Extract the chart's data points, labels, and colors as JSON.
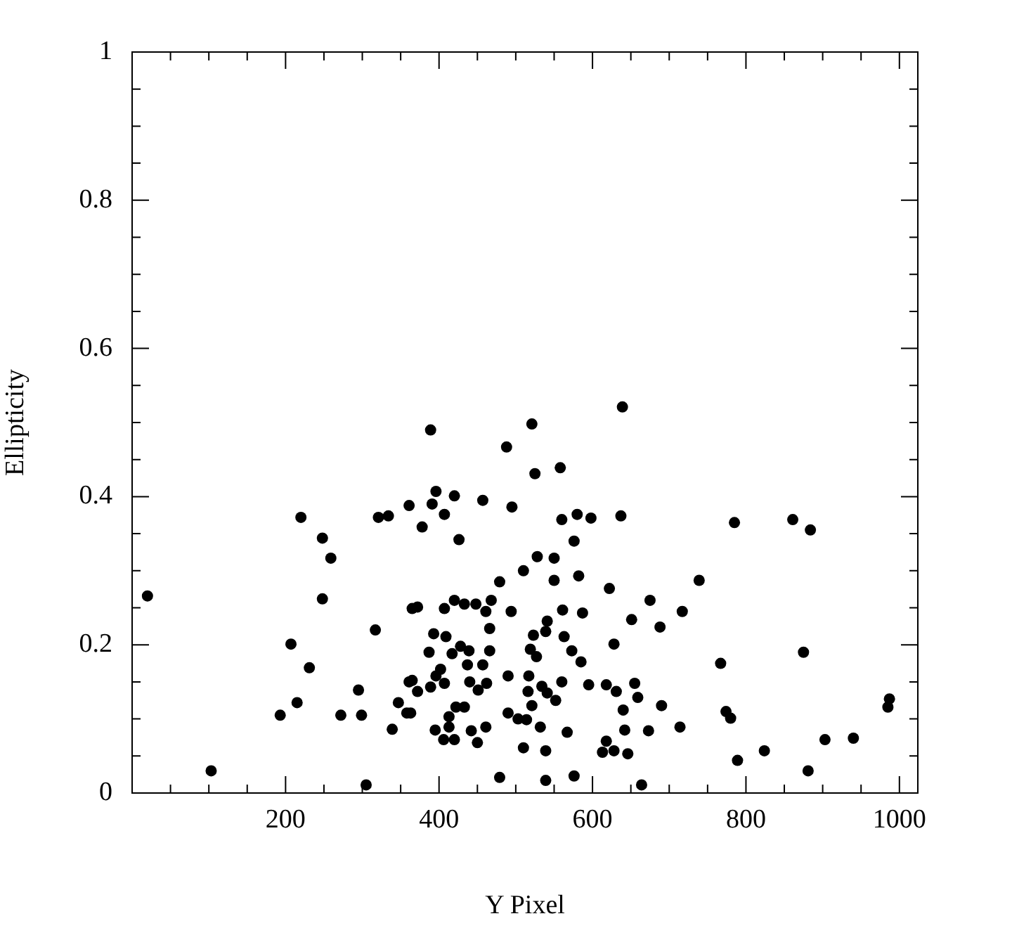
{
  "chart_data": {
    "type": "scatter",
    "xlabel": "Y Pixel",
    "ylabel": "Ellipticity",
    "xlim": [
      0,
      1024
    ],
    "ylim": [
      0,
      1
    ],
    "xticks": [
      {
        "value": 50,
        "label": null
      },
      {
        "value": 100,
        "label": null
      },
      {
        "value": 150,
        "label": null
      },
      200,
      {
        "value": 250,
        "label": null
      },
      {
        "value": 300,
        "label": null
      },
      {
        "value": 350,
        "label": null
      },
      400,
      {
        "value": 450,
        "label": null
      },
      {
        "value": 500,
        "label": null
      },
      {
        "value": 550,
        "label": null
      },
      600,
      {
        "value": 650,
        "label": null
      },
      {
        "value": 700,
        "label": null
      },
      {
        "value": 750,
        "label": null
      },
      800,
      {
        "value": 850,
        "label": null
      },
      {
        "value": 900,
        "label": null
      },
      {
        "value": 950,
        "label": null
      },
      1000
    ],
    "yticks": [
      0,
      {
        "value": 0.05,
        "label": null
      },
      {
        "value": 0.1,
        "label": null
      },
      {
        "value": 0.15,
        "label": null
      },
      0.2,
      {
        "value": 0.25,
        "label": null
      },
      {
        "value": 0.3,
        "label": null
      },
      {
        "value": 0.35,
        "label": null
      },
      0.4,
      {
        "value": 0.45,
        "label": null
      },
      {
        "value": 0.5,
        "label": null
      },
      {
        "value": 0.55,
        "label": null
      },
      0.6,
      {
        "value": 0.65,
        "label": null
      },
      {
        "value": 0.7,
        "label": null
      },
      {
        "value": 0.75,
        "label": null
      },
      0.8,
      {
        "value": 0.85,
        "label": null
      },
      {
        "value": 0.9,
        "label": null
      },
      {
        "value": 0.95,
        "label": null
      },
      1
    ],
    "grid": false,
    "legend": false,
    "marker": "circle",
    "series": [
      {
        "color": "#000000",
        "x": [
          20,
          103,
          220,
          248,
          259,
          248,
          207,
          231,
          215,
          193,
          272,
          299,
          295,
          305,
          317,
          321,
          334,
          361,
          365,
          361,
          347,
          358,
          339,
          389,
          521,
          488,
          525,
          558,
          396,
          420,
          457,
          391,
          495,
          407,
          560,
          580,
          598,
          378,
          426,
          576,
          528,
          550,
          510,
          550,
          582,
          479,
          622,
          372,
          407,
          420,
          433,
          448,
          468,
          461,
          494,
          561,
          587,
          541,
          466,
          393,
          409,
          523,
          539,
          563,
          628,
          519,
          387,
          417,
          428,
          439,
          466,
          573,
          527,
          457,
          437,
          585,
          402,
          396,
          365,
          490,
          517,
          440,
          451,
          462,
          372,
          389,
          407,
          534,
          541,
          516,
          560,
          595,
          618,
          631,
          552,
          521,
          422,
          433,
          363,
          490,
          503,
          514,
          413,
          413,
          532,
          395,
          461,
          442,
          450,
          567,
          406,
          420,
          510,
          539,
          618,
          613,
          628,
          479,
          539,
          576,
          639,
          637,
          785,
          739,
          675,
          717,
          651,
          688,
          767,
          655,
          659,
          690,
          640,
          774,
          780,
          642,
          673,
          714,
          646,
          824,
          789,
          664,
          861,
          884,
          875,
          987,
          985,
          903,
          940,
          881
        ],
        "values": [
          0.266,
          0.03,
          0.372,
          0.344,
          0.317,
          0.262,
          0.201,
          0.169,
          0.122,
          0.105,
          0.105,
          0.105,
          0.139,
          0.011,
          0.22,
          0.372,
          0.374,
          0.388,
          0.249,
          0.15,
          0.122,
          0.108,
          0.086,
          0.49,
          0.498,
          0.467,
          0.431,
          0.439,
          0.407,
          0.401,
          0.395,
          0.39,
          0.386,
          0.376,
          0.369,
          0.376,
          0.371,
          0.359,
          0.342,
          0.34,
          0.319,
          0.317,
          0.3,
          0.287,
          0.293,
          0.285,
          0.276,
          0.251,
          0.249,
          0.26,
          0.255,
          0.255,
          0.26,
          0.245,
          0.245,
          0.247,
          0.243,
          0.232,
          0.222,
          0.215,
          0.211,
          0.213,
          0.218,
          0.211,
          0.201,
          0.194,
          0.19,
          0.188,
          0.198,
          0.192,
          0.192,
          0.192,
          0.184,
          0.173,
          0.173,
          0.177,
          0.167,
          0.158,
          0.152,
          0.158,
          0.158,
          0.15,
          0.139,
          0.148,
          0.137,
          0.143,
          0.148,
          0.144,
          0.135,
          0.137,
          0.15,
          0.146,
          0.146,
          0.137,
          0.125,
          0.118,
          0.116,
          0.116,
          0.108,
          0.108,
          0.1,
          0.099,
          0.103,
          0.089,
          0.089,
          0.085,
          0.089,
          0.084,
          0.068,
          0.082,
          0.072,
          0.072,
          0.061,
          0.057,
          0.07,
          0.055,
          0.057,
          0.021,
          0.017,
          0.023,
          0.521,
          0.374,
          0.365,
          0.287,
          0.26,
          0.245,
          0.234,
          0.224,
          0.175,
          0.148,
          0.129,
          0.118,
          0.112,
          0.11,
          0.101,
          0.085,
          0.084,
          0.089,
          0.053,
          0.057,
          0.044,
          0.011,
          0.369,
          0.355,
          0.19,
          0.127,
          0.116,
          0.072,
          0.074,
          0.03
        ]
      }
    ]
  }
}
